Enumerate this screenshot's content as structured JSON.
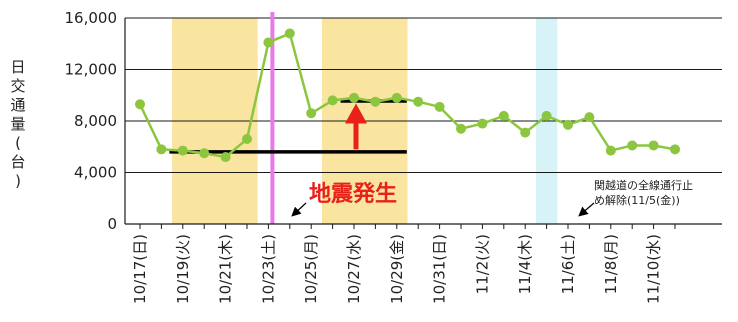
{
  "chart_data": {
    "type": "line",
    "ylabel": "日交通量(台)",
    "ylim": [
      0,
      16000
    ],
    "yticks": [
      0,
      4000,
      8000,
      12000,
      16000
    ],
    "ytick_labels": [
      "0",
      "4,000",
      "8,000",
      "12,000",
      "16,000"
    ],
    "grid": "horizontal",
    "x_tick_labels": [
      "10/17(日)",
      "10/19(火)",
      "10/21(木)",
      "10/23(土)",
      "10/25(月)",
      "10/27(水)",
      "10/29(金)",
      "10/31(日)",
      "11/2(火)",
      "11/4(木)",
      "11/6(土)",
      "11/8(月)",
      "11/10(水)"
    ],
    "series": [
      {
        "color": "#8cc63f",
        "x": [
          "10/17",
          "10/18",
          "10/19",
          "10/20",
          "10/21",
          "10/22",
          "10/23",
          "10/24",
          "10/25",
          "10/26",
          "10/27",
          "10/28",
          "10/29",
          "10/30",
          "10/31",
          "11/1",
          "11/2",
          "11/3",
          "11/4",
          "11/5",
          "11/6",
          "11/7",
          "11/8",
          "11/9",
          "11/10",
          "11/11"
        ],
        "values": [
          9300,
          5800,
          5700,
          5500,
          5200,
          6600,
          14100,
          14800,
          8600,
          9600,
          9800,
          9500,
          9800,
          9500,
          9100,
          7400,
          7800,
          8400,
          7100,
          8400,
          7700,
          8300,
          5700,
          6100,
          6100,
          5800
        ]
      }
    ],
    "highlight_bands": [
      {
        "from": "10/19",
        "to": "10/22",
        "color": "#f9e4a0"
      },
      {
        "from": "10/26",
        "to": "10/29",
        "color": "#f9e4a0"
      },
      {
        "from": "11/5",
        "to": "11/5",
        "color": "#d8f3f8"
      }
    ],
    "reference_lines": [
      {
        "from": "10/18",
        "to": "10/29",
        "value": 5600,
        "color": "#000000"
      },
      {
        "from": "10/26",
        "to": "10/29",
        "value": 9550,
        "color": "#000000"
      }
    ],
    "event_line": {
      "x": "10/23",
      "color": "#e879e8"
    },
    "arrow": {
      "x": "10/27",
      "from": 5800,
      "to": 9200,
      "color": "#e8221b"
    },
    "annotations": {
      "earthquake": "地震発生",
      "reopen_line1": "関越道の全線通行止",
      "reopen_line2": "め解除(11/5(金))"
    }
  }
}
